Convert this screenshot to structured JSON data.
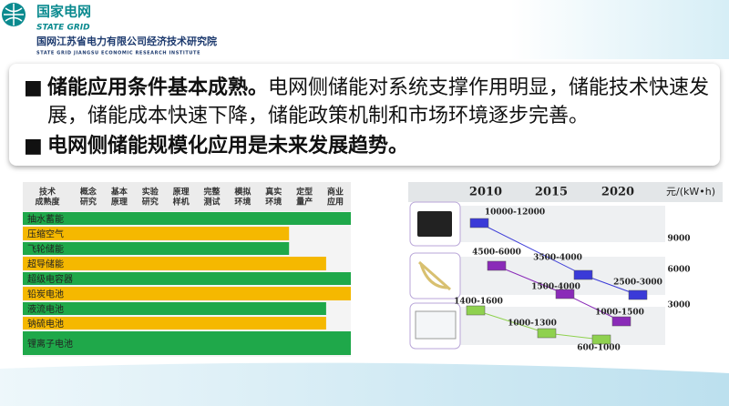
{
  "header": {
    "org_cn": "国家电网",
    "org_en": "STATE GRID",
    "institute_cn": "国网江苏省电力有限公司经济技术研究院",
    "institute_en": "STATE GRID JIANGSU ECONOMIC RESEARCH INSTITUTE"
  },
  "summary": {
    "points": [
      {
        "bold": "储能应用条件基本成熟。",
        "text": "电网侧储能对系统支撑作用明显，储能技术快速发展，储能成本快速下降，储能政策机制和市场环境逐步完善。"
      },
      {
        "bold": "电网侧储能规模化应用是未来发展趋势。"
      }
    ]
  },
  "maturity_table": {
    "corner": [
      "技术",
      "成熟度"
    ],
    "stages": [
      [
        "概念",
        "研究"
      ],
      [
        "基本",
        "原理"
      ],
      [
        "实验",
        "研究"
      ],
      [
        "原理",
        "样机"
      ],
      [
        "完整",
        "测试"
      ],
      [
        "模拟",
        "环境"
      ],
      [
        "真实",
        "环境"
      ],
      [
        "定型",
        "量产"
      ],
      [
        "商业",
        "应用"
      ]
    ],
    "rows": [
      {
        "name": "抽水蓄能",
        "stage_reached": 9,
        "color": "#1fa84a"
      },
      {
        "name": "压缩空气",
        "stage_reached": 7,
        "color": "#f5b800"
      },
      {
        "name": "飞轮储能",
        "stage_reached": 7,
        "color": "#1fa84a"
      },
      {
        "name": "超导储能",
        "stage_reached": 8.2,
        "color": "#f5b800"
      },
      {
        "name": "超级电容器",
        "stage_reached": 9,
        "color": "#1fa84a"
      },
      {
        "name": "铅炭电池",
        "stage_reached": 9,
        "color": "#f5b800"
      },
      {
        "name": "液流电池",
        "stage_reached": 8.2,
        "color": "#1fa84a"
      },
      {
        "name": "钠硫电池",
        "stage_reached": 8.2,
        "color": "#f5b800"
      },
      {
        "name": "锂离子电池",
        "stage_reached": 9,
        "color": "#1fa84a"
      }
    ]
  },
  "cost_chart": {
    "years": [
      "2010",
      "2015",
      "2020"
    ],
    "unit": "元/(kW•h)",
    "levels": [
      "9000",
      "6000",
      "3000"
    ],
    "series": [
      {
        "color": "#3a3ad8",
        "labels": [
          "10000-12000",
          "3500-4000",
          "2500-3000"
        ]
      },
      {
        "color": "#8a2bb8",
        "labels": [
          "4500-6000",
          "1500-4000",
          "1000-1500"
        ]
      },
      {
        "color": "#8fd14f",
        "labels": [
          "1400-1600",
          "1000-1300",
          "600-1000"
        ]
      }
    ]
  }
}
